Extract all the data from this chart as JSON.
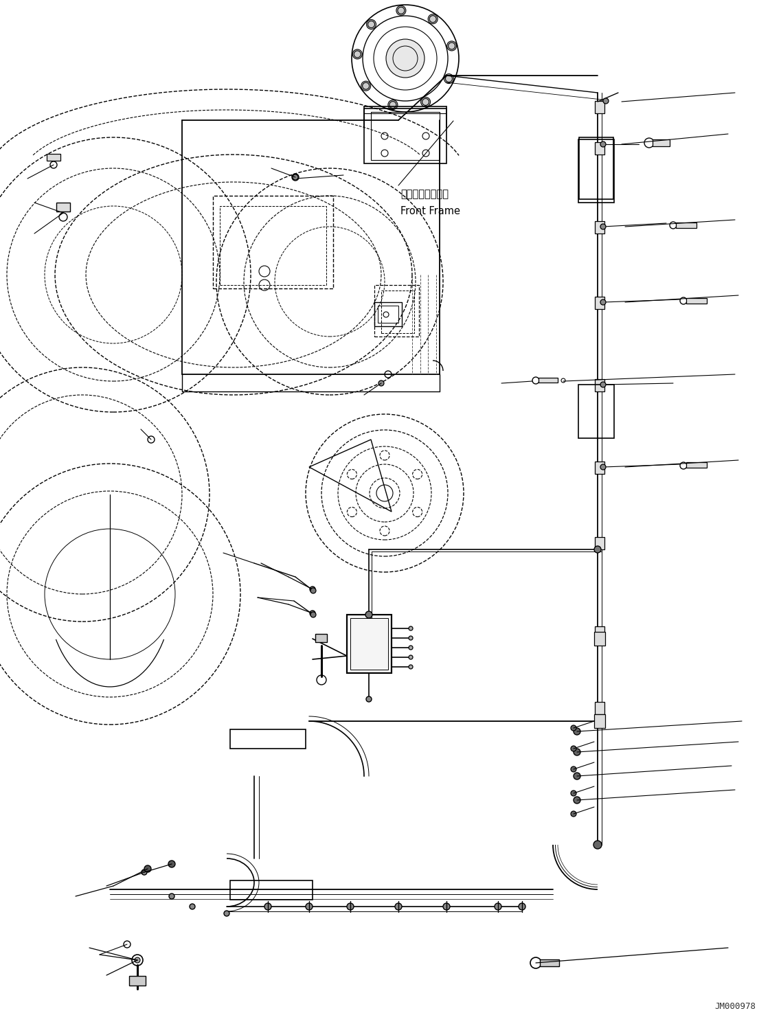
{
  "bg_color": "#ffffff",
  "line_color": "#000000",
  "dashed_color": "#000000",
  "title_text": "JM000978",
  "label_jp": "フロントフレーム",
  "label_en": "Front Frame",
  "figsize": [
    11.37,
    14.91
  ],
  "dpi": 100
}
